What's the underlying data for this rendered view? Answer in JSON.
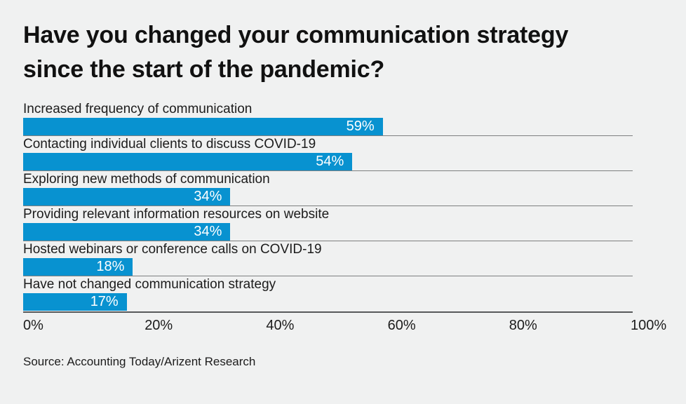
{
  "page": {
    "background_color": "#f0f1f1"
  },
  "chart_data": {
    "type": "bar",
    "orientation": "horizontal",
    "title": "Have you changed your communication strategy since the start of the pandemic?",
    "categories": [
      "Increased frequency of communication",
      "Contacting individual clients to discuss COVID-19",
      "Exploring new methods of communication",
      "Providing relevant information resources on website",
      "Hosted webinars or conference calls on COVID-19",
      "Have not changed communication strategy"
    ],
    "values": [
      59,
      54,
      34,
      34,
      18,
      17
    ],
    "value_labels": [
      "59%",
      "54%",
      "34%",
      "34%",
      "18%",
      "17%"
    ],
    "xlabel": "",
    "ylabel": "",
    "xlim": [
      0,
      100
    ],
    "x_ticks": [
      "0%",
      "20%",
      "40%",
      "60%",
      "80%",
      "100%"
    ],
    "grid": "horizontal separator line under each bar, dark baseline under last bar",
    "legend": "none",
    "bar_color": "#0892d0",
    "value_text_color": "#ffffff",
    "separator_color": "#7d7f80",
    "axis_line_color": "#57595a",
    "source": "Source: Accounting Today/Arizent Research"
  }
}
